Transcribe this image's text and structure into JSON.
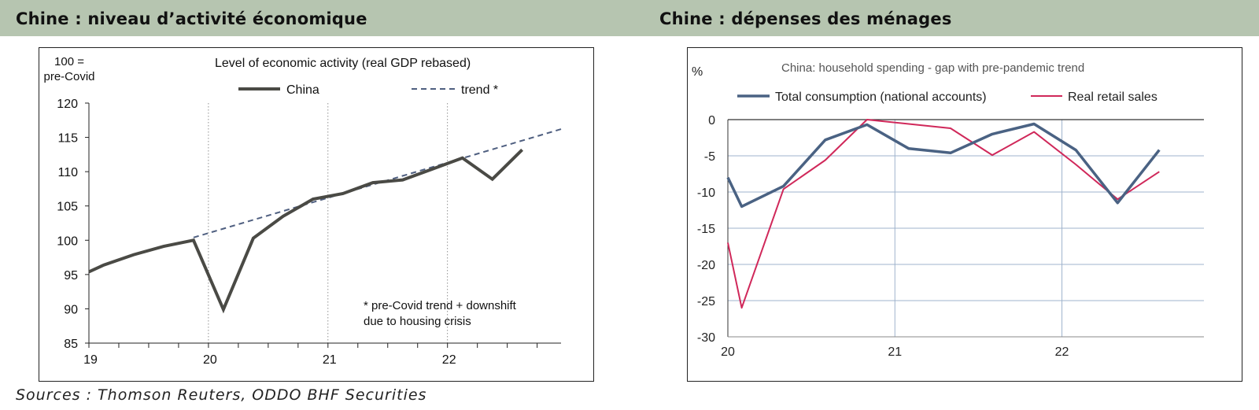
{
  "header": {
    "left_title": "Chine : niveau d’activité économique",
    "right_title": "Chine : dépenses des ménages"
  },
  "footer": {
    "sources": "Sources : Thomson Reuters, ODDO BHF Securities"
  },
  "colors": {
    "header_bg": "#b6c5b0",
    "china": "#4a4a45",
    "trend": "#4f5f80",
    "total_consumption": "#4a6283",
    "retail_sales": "#d0285a",
    "grid": "#9fb3cc"
  },
  "chart_data": [
    {
      "type": "line",
      "title": "Level of economic activity (real GDP rebased)",
      "ylabel": "100 =\npre-Covid",
      "ylim": [
        85,
        120
      ],
      "yticks": [
        85,
        90,
        95,
        100,
        105,
        110,
        115,
        120
      ],
      "xlim": [
        2019.0,
        2022.95
      ],
      "xticks": [
        2019,
        2020,
        2021,
        2022
      ],
      "xtick_labels": [
        "19",
        "20",
        "21",
        "22"
      ],
      "grid": "vertical dotted",
      "legend": "top",
      "annotation": "* pre-Covid trend + downshift\ndue to housing crisis",
      "series": [
        {
          "name": "China",
          "style": "solid",
          "x": [
            2019.0,
            2019.125,
            2019.375,
            2019.625,
            2019.875,
            2020.125,
            2020.375,
            2020.625,
            2020.875,
            2021.125,
            2021.375,
            2021.625,
            2021.875,
            2022.125,
            2022.375,
            2022.625
          ],
          "values": [
            95.4,
            96.4,
            97.9,
            99.1,
            100.0,
            89.9,
            100.3,
            103.5,
            106.0,
            106.8,
            108.4,
            108.8,
            110.4,
            112.0,
            108.9,
            113.2
          ]
        },
        {
          "name": "trend *",
          "style": "dashed",
          "x": [
            2019.875,
            2022.95
          ],
          "values": [
            100.4,
            116.2
          ]
        }
      ]
    },
    {
      "type": "line",
      "title": "China: household spending - gap with pre-pandemic trend",
      "ylabel": "%",
      "ylim": [
        -30,
        0
      ],
      "yticks": [
        0,
        -5,
        -10,
        -15,
        -20,
        -25,
        -30
      ],
      "xlim": [
        2020.0,
        2022.85
      ],
      "xticks": [
        2020,
        2021,
        2022
      ],
      "xtick_labels": [
        "20",
        "21",
        "22"
      ],
      "grid": "horizontal and vertical",
      "legend": "top",
      "series": [
        {
          "name": "Total consumption (national accounts)",
          "x": [
            2020.0,
            2020.083,
            2020.333,
            2020.583,
            2020.833,
            2021.083,
            2021.333,
            2021.583,
            2021.833,
            2022.083,
            2022.333,
            2022.583
          ],
          "values": [
            -8.0,
            -12.0,
            -9.2,
            -2.8,
            -0.7,
            -4.0,
            -4.6,
            -2.0,
            -0.6,
            -4.2,
            -11.5,
            -4.2
          ]
        },
        {
          "name": "Real retail sales",
          "x": [
            2020.0,
            2020.083,
            2020.333,
            2020.583,
            2020.833,
            2021.083,
            2021.333,
            2021.583,
            2021.833,
            2022.083,
            2022.333,
            2022.583
          ],
          "values": [
            -17.0,
            -26.0,
            -9.6,
            -5.6,
            0.0,
            -0.6,
            -1.2,
            -4.9,
            -1.7,
            -6.2,
            -11.0,
            -7.2
          ]
        }
      ]
    }
  ]
}
